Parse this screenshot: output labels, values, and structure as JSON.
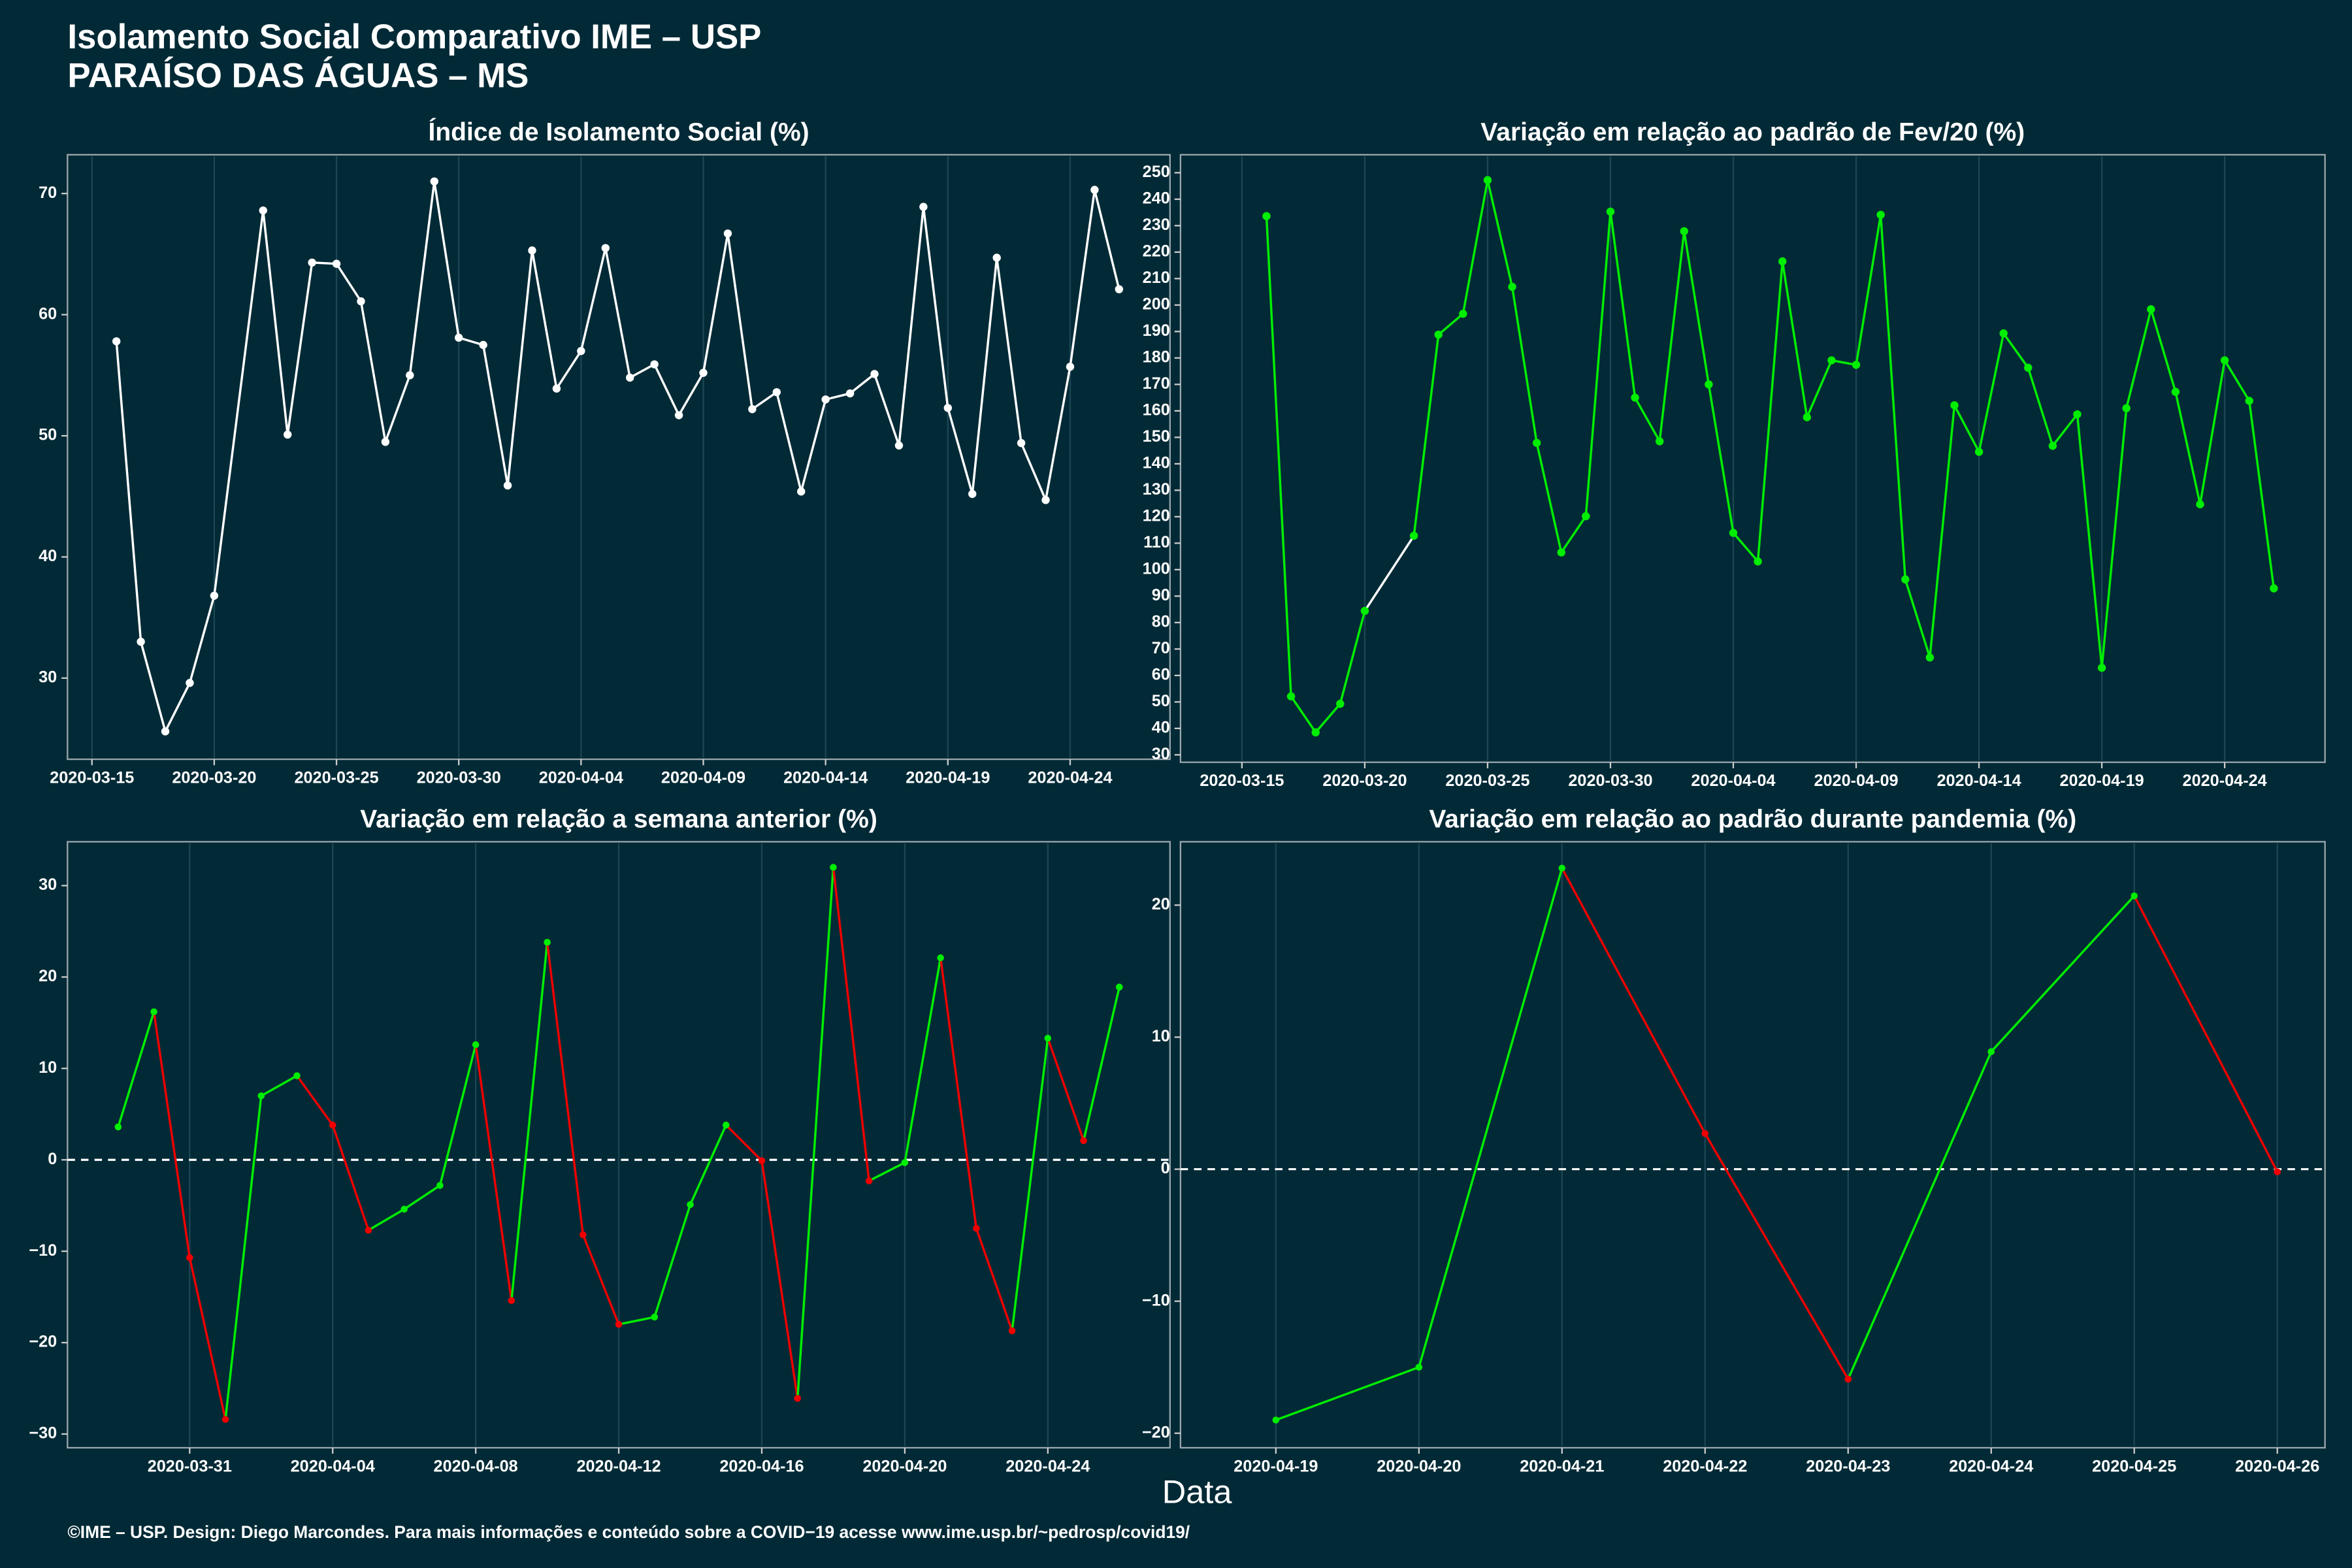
{
  "title": "Isolamento Social Comparativo IME – USP",
  "subtitle": "PARAÍSO DAS ÁGUAS – MS",
  "xlabel": "Data",
  "footer": "©IME – USP. Design: Diego Marcondes. Para mais informações e conteúdo sobre a COVID−19 acesse www.ime.usp.br/~pedrosp/covid19/",
  "chart_data": [
    {
      "type": "line",
      "title": "Índice de Isolamento Social (%)",
      "x": [
        "2020-03-16",
        "2020-03-17",
        "2020-03-18",
        "2020-03-19",
        "2020-03-20",
        "2020-03-22",
        "2020-03-23",
        "2020-03-24",
        "2020-03-25",
        "2020-03-26",
        "2020-03-27",
        "2020-03-28",
        "2020-03-29",
        "2020-03-30",
        "2020-03-31",
        "2020-04-01",
        "2020-04-02",
        "2020-04-03",
        "2020-04-04",
        "2020-04-05",
        "2020-04-06",
        "2020-04-07",
        "2020-04-08",
        "2020-04-09",
        "2020-04-10",
        "2020-04-11",
        "2020-04-12",
        "2020-04-13",
        "2020-04-14",
        "2020-04-15",
        "2020-04-16",
        "2020-04-17",
        "2020-04-18",
        "2020-04-19",
        "2020-04-20",
        "2020-04-21",
        "2020-04-22",
        "2020-04-23",
        "2020-04-24",
        "2020-04-25",
        "2020-04-26"
      ],
      "values": [
        57.8,
        33.0,
        25.6,
        29.6,
        36.8,
        68.6,
        50.1,
        64.3,
        64.2,
        61.1,
        49.5,
        55.0,
        71.0,
        58.1,
        57.5,
        45.9,
        65.3,
        53.9,
        57.0,
        65.5,
        54.8,
        55.9,
        51.7,
        55.2,
        66.7,
        52.2,
        53.6,
        45.4,
        53.0,
        53.5,
        55.1,
        49.2,
        68.9,
        52.3,
        45.2,
        64.7,
        49.4,
        44.7,
        55.7,
        70.3,
        62.1
      ],
      "color": "#ffffff",
      "xlim": [
        "2020-03-14T00:00:00Z",
        "2020-04-28T02:00:00Z"
      ],
      "xticks": [
        "2020-03-15",
        "2020-03-20",
        "2020-03-25",
        "2020-03-30",
        "2020-04-04",
        "2020-04-09",
        "2020-04-14",
        "2020-04-19",
        "2020-04-24"
      ],
      "ylim": [
        23.3,
        73.2
      ],
      "yticks": [
        30,
        40,
        50,
        60,
        70
      ],
      "grid": "x"
    },
    {
      "type": "line",
      "title": "Variação em relação ao padrão de Fev/20 (%)",
      "x": [
        "2020-03-16",
        "2020-03-17",
        "2020-03-18",
        "2020-03-19",
        "2020-03-20",
        "2020-03-22",
        "2020-03-23",
        "2020-03-24",
        "2020-03-25",
        "2020-03-26",
        "2020-03-27",
        "2020-03-28",
        "2020-03-29",
        "2020-03-30",
        "2020-03-31",
        "2020-04-01",
        "2020-04-02",
        "2020-04-03",
        "2020-04-04",
        "2020-04-05",
        "2020-04-06",
        "2020-04-07",
        "2020-04-08",
        "2020-04-09",
        "2020-04-10",
        "2020-04-11",
        "2020-04-12",
        "2020-04-13",
        "2020-04-14",
        "2020-04-15",
        "2020-04-16",
        "2020-04-17",
        "2020-04-18",
        "2020-04-19",
        "2020-04-20",
        "2020-04-21",
        "2020-04-22",
        "2020-04-23",
        "2020-04-24",
        "2020-04-25",
        "2020-04-26"
      ],
      "values": [
        233.6,
        52.1,
        38.5,
        49.3,
        84.4,
        112.8,
        188.8,
        196.7,
        247.2,
        206.9,
        147.9,
        106.5,
        120.2,
        235.3,
        165.0,
        148.5,
        227.9,
        170.0,
        113.9,
        103.1,
        216.5,
        157.6,
        179.1,
        177.4,
        234.1,
        96.3,
        66.8,
        162.1,
        144.5,
        189.3,
        176.3,
        146.8,
        158.7,
        62.9,
        161.0,
        198.4,
        167.2,
        124.7,
        179.1,
        163.8,
        92.9
      ],
      "color": "#00ee00",
      "gap_color": "#ffffff",
      "xlim": [
        "2020-03-12T12:00:00Z",
        "2020-04-28T02:00:00Z"
      ],
      "xticks": [
        "2020-03-15",
        "2020-03-20",
        "2020-03-25",
        "2020-03-30",
        "2020-04-04",
        "2020-04-09",
        "2020-04-14",
        "2020-04-19",
        "2020-04-24"
      ],
      "ylim": [
        27.2,
        256.8
      ],
      "yticks": [
        30,
        40,
        50,
        60,
        70,
        80,
        90,
        100,
        110,
        120,
        130,
        140,
        150,
        160,
        170,
        180,
        190,
        200,
        210,
        220,
        230,
        240,
        250
      ],
      "grid": "x"
    },
    {
      "type": "line",
      "title": "Variação em relação a semana anterior (%)",
      "x": [
        "2020-03-29",
        "2020-03-30",
        "2020-03-31",
        "2020-04-01",
        "2020-04-02",
        "2020-04-03",
        "2020-04-04",
        "2020-04-05",
        "2020-04-06",
        "2020-04-07",
        "2020-04-08",
        "2020-04-09",
        "2020-04-10",
        "2020-04-11",
        "2020-04-12",
        "2020-04-13",
        "2020-04-14",
        "2020-04-15",
        "2020-04-16",
        "2020-04-17",
        "2020-04-18",
        "2020-04-19",
        "2020-04-20",
        "2020-04-21",
        "2020-04-22",
        "2020-04-23",
        "2020-04-24",
        "2020-04-25",
        "2020-04-26"
      ],
      "values": [
        3.6,
        16.2,
        -10.7,
        -28.4,
        7.0,
        9.2,
        3.8,
        -7.7,
        -5.4,
        -2.8,
        12.6,
        -15.4,
        23.8,
        -8.2,
        -18.0,
        -17.2,
        -4.9,
        3.8,
        -0.1,
        -26.1,
        32.0,
        -2.3,
        -0.3,
        22.1,
        -7.5,
        -18.7,
        13.3,
        2.1,
        18.9
      ],
      "up_color": "#00ee00",
      "down_color": "#ee0000",
      "hline": 0,
      "xlim": [
        "2020-03-27T14:00:00Z",
        "2020-04-27T10:00:00Z"
      ],
      "xticks": [
        "2020-03-31",
        "2020-04-04",
        "2020-04-08",
        "2020-04-12",
        "2020-04-16",
        "2020-04-20",
        "2020-04-24"
      ],
      "ylim": [
        -31.5,
        34.8
      ],
      "yticks": [
        {
          "value": -30,
          "label": "−30"
        },
        {
          "value": -20,
          "label": "−20"
        },
        {
          "value": -10,
          "label": "−10"
        },
        0,
        10,
        20,
        30
      ],
      "grid": "x"
    },
    {
      "type": "line",
      "title": "Variação em relação ao padrão durante pandemia (%)",
      "x": [
        "2020-04-19",
        "2020-04-20",
        "2020-04-21",
        "2020-04-22",
        "2020-04-23",
        "2020-04-24",
        "2020-04-25",
        "2020-04-26"
      ],
      "values": [
        -19.0,
        -15.0,
        22.8,
        2.7,
        -15.9,
        8.9,
        20.7,
        -0.2
      ],
      "up_color": "#00ee00",
      "down_color": "#ee0000",
      "hline": 0,
      "xlim": [
        "2020-04-18T08:00:00Z",
        "2020-04-26T08:00:00Z"
      ],
      "xticks": [
        "2020-04-19",
        "2020-04-20",
        "2020-04-21",
        "2020-04-22",
        "2020-04-23",
        "2020-04-24",
        "2020-04-25",
        "2020-04-26"
      ],
      "ylim": [
        -21.1,
        24.8
      ],
      "yticks": [
        {
          "value": -20,
          "label": "−20"
        },
        {
          "value": -10,
          "label": "−10"
        },
        0,
        10,
        20
      ],
      "grid": "x"
    }
  ]
}
